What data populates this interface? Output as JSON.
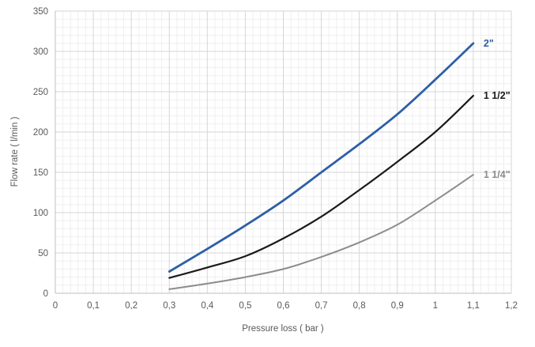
{
  "chart_data": {
    "type": "line",
    "title": "",
    "xlabel": "Pressure loss ( bar )",
    "ylabel": "Flow rate ( l/min )",
    "xlim": [
      0,
      1.2
    ],
    "ylim": [
      0,
      350
    ],
    "grid": "major+minor",
    "x_minor_step": 0.02,
    "y_minor_step": 10,
    "x_ticks": [
      {
        "value": 0,
        "label": "0"
      },
      {
        "value": 0.1,
        "label": "0,1"
      },
      {
        "value": 0.2,
        "label": "0,2"
      },
      {
        "value": 0.3,
        "label": "0,3"
      },
      {
        "value": 0.4,
        "label": "0,4"
      },
      {
        "value": 0.5,
        "label": "0,5"
      },
      {
        "value": 0.6,
        "label": "0,6"
      },
      {
        "value": 0.7,
        "label": "0,7"
      },
      {
        "value": 0.8,
        "label": "0,8"
      },
      {
        "value": 0.9,
        "label": "0,9"
      },
      {
        "value": 1,
        "label": "1"
      },
      {
        "value": 1.1,
        "label": "1,1"
      },
      {
        "value": 1.2,
        "label": "1,2"
      }
    ],
    "y_ticks": [
      {
        "value": 0,
        "label": "0"
      },
      {
        "value": 50,
        "label": "50"
      },
      {
        "value": 100,
        "label": "100"
      },
      {
        "value": 150,
        "label": "150"
      },
      {
        "value": 200,
        "label": "200"
      },
      {
        "value": 250,
        "label": "250"
      },
      {
        "value": 300,
        "label": "300"
      },
      {
        "value": 350,
        "label": "350"
      }
    ],
    "x": [
      0.3,
      0.4,
      0.5,
      0.6,
      0.7,
      0.8,
      0.9,
      1.0,
      1.1
    ],
    "series": [
      {
        "name": "2\"",
        "color": "#2e5fa6",
        "line_width": 2.8,
        "values": [
          27,
          55,
          84,
          115,
          150,
          185,
          222,
          265,
          310
        ]
      },
      {
        "name": "1 1/2\"",
        "color": "#1a1a1a",
        "line_width": 2.2,
        "values": [
          19,
          32,
          46,
          68,
          95,
          128,
          163,
          200,
          245
        ]
      },
      {
        "name": "1 1/4\"",
        "color": "#8c8c8c",
        "line_width": 2.0,
        "values": [
          5,
          12,
          20,
          30,
          45,
          63,
          85,
          115,
          147
        ]
      }
    ],
    "legend_position": "end-of-line-labels"
  },
  "style_colors": {
    "minor_grid": "#efefef",
    "major_grid": "#d6d6d6",
    "axis_line": "#bfbfbf",
    "tick_text": "#595959",
    "background": "#ffffff"
  }
}
